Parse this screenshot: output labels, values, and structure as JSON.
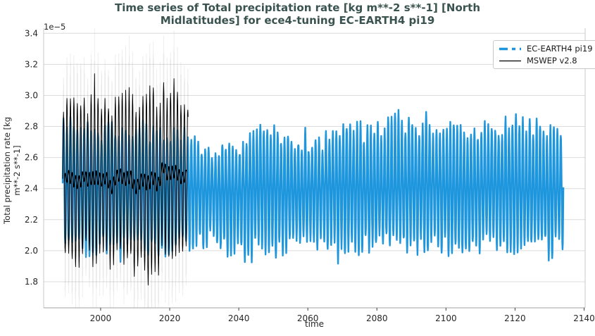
{
  "chart_data": {
    "type": "line",
    "title": "Time series of Total precipitation rate [kg m**-2 s**-1] [North Midlatitudes] for ece4-tuning EC-EARTH4 pi19",
    "title_lines": [
      "Time series of Total precipitation rate [kg m**-2 s**-1] [North",
      "Midlatitudes] for ece4-tuning EC-EARTH4 pi19"
    ],
    "xlabel": "time",
    "ylabel_lines": [
      "Total precipitation rate [kg",
      "m**-2 s**-1]"
    ],
    "y_offset_text": "1e−5",
    "value_scale": "1e-5",
    "x_ticks": [
      2000,
      2020,
      2040,
      2060,
      2080,
      2100,
      2120,
      2140
    ],
    "y_ticks": [
      1.8,
      2.0,
      2.2,
      2.4,
      2.6,
      2.8,
      3.0,
      3.2,
      3.4
    ],
    "xlim": [
      1983.5,
      2140.3
    ],
    "ylim": [
      1.632,
      3.433
    ],
    "grid": "horizontal",
    "legend": {
      "position": "upper-right",
      "entries": [
        {
          "label": "EC-EARTH4 pi19",
          "color": "#1d96dd",
          "dash": "12 6 5 6",
          "width": 3.5
        },
        {
          "label": "MSWEP v2.8",
          "color": "#000000",
          "dash": "",
          "width": 1.2
        }
      ]
    },
    "style": {
      "title_color": "#3a534f",
      "grid_color": "#dcdcdc",
      "spine_color": "#c8c8c8",
      "bottom_spine_color": "#b5b5b5",
      "tick_color": "#404040",
      "tick_label_color": "#262626",
      "axis_label_color": "#262626",
      "background": "#ffffff",
      "range_band_color": "#999999"
    },
    "series": [
      {
        "name": "EC-EARTH4 pi19",
        "color": "#1d96dd",
        "line_width": 2.4,
        "cadence": "monthly",
        "x_start": 1989.0,
        "x_end": 2134.0,
        "seed": 11,
        "mean_sample": [
          [
            1989,
            2.42
          ],
          [
            2040,
            2.39
          ],
          [
            2090,
            2.41
          ],
          [
            2134,
            2.4
          ]
        ],
        "envelope_years": [
          1989,
          1995,
          2000,
          2005,
          2010,
          2015,
          2020,
          2026,
          2032,
          2038,
          2044,
          2047,
          2052,
          2058,
          2064,
          2070,
          2076,
          2082,
          2088,
          2094,
          2100,
          2106,
          2112,
          2118,
          2124,
          2130,
          2134
        ],
        "envelope_max": [
          2.9,
          2.82,
          2.8,
          2.84,
          2.84,
          2.8,
          2.8,
          2.78,
          2.66,
          2.7,
          2.74,
          2.84,
          2.8,
          2.72,
          2.74,
          2.82,
          2.8,
          2.86,
          2.88,
          2.84,
          2.82,
          2.8,
          2.84,
          2.84,
          2.86,
          2.82,
          2.82
        ],
        "envelope_min": [
          2.02,
          1.98,
          2.0,
          1.96,
          2.02,
          1.94,
          1.98,
          2.0,
          2.04,
          1.96,
          2.0,
          1.98,
          1.94,
          2.04,
          2.02,
          1.92,
          2.0,
          2.02,
          1.96,
          2.0,
          2.0,
          1.98,
          2.02,
          1.96,
          2.04,
          1.96,
          2.0
        ],
        "spikes": []
      },
      {
        "name": "MSWEP v2.8",
        "color": "#000000",
        "line_width": 0.95,
        "cadence": "monthly",
        "x_start": 1989.0,
        "x_end": 2025.3,
        "seed": 23,
        "mean_sample": [
          [
            1989,
            2.47
          ],
          [
            1994,
            2.46
          ],
          [
            2000,
            2.44
          ],
          [
            2004,
            2.45
          ],
          [
            2008,
            2.43
          ],
          [
            2012,
            2.46
          ],
          [
            2015,
            2.48
          ],
          [
            2018,
            2.55
          ],
          [
            2020,
            2.53
          ],
          [
            2022,
            2.47
          ],
          [
            2025,
            2.5
          ]
        ],
        "envelope_years": [
          1989,
          1993,
          1996,
          1998,
          2000,
          2004,
          2008,
          2012,
          2016,
          2020,
          2023,
          2025
        ],
        "envelope_max": [
          2.92,
          3.0,
          2.96,
          3.14,
          2.94,
          3.0,
          3.06,
          3.0,
          3.04,
          3.06,
          2.96,
          2.92
        ],
        "envelope_min": [
          1.95,
          1.88,
          1.92,
          1.86,
          1.88,
          1.9,
          1.84,
          1.9,
          1.86,
          1.92,
          1.88,
          1.94
        ],
        "spikes": [
          [
            1998.2,
            3.14
          ]
        ],
        "range_band": {
          "opacity": 0.22,
          "width": 0.8
        },
        "running_mean": {
          "window_months": 13,
          "width": 1.4
        }
      }
    ]
  }
}
